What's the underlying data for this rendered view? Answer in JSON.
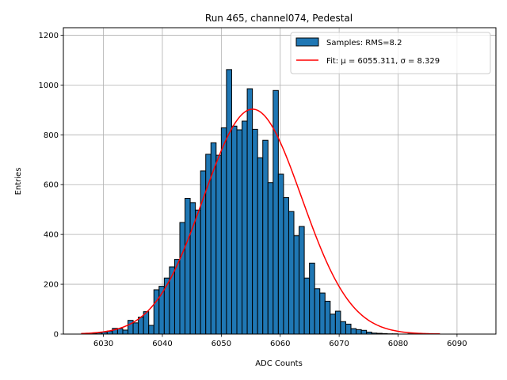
{
  "chart_data": {
    "type": "bar",
    "title": "Run 465, channel074, Pedestal",
    "xlabel": "ADC Counts",
    "ylabel": "Entries",
    "xlim": [
      6023.2,
      6096.6
    ],
    "ylim": [
      0,
      1230
    ],
    "xticks": [
      6030,
      6040,
      6050,
      6060,
      6070,
      6080,
      6090
    ],
    "yticks": [
      0,
      200,
      400,
      600,
      800,
      1000,
      1200
    ],
    "grid": true,
    "legend_position": "top-right",
    "bin_width": 0.88,
    "series": [
      {
        "name": "Samples: RMS=8.2",
        "kind": "histogram",
        "color": "#1f77b4",
        "edgecolor": "#000000",
        "bin_starts": [
          6028.0,
          6028.88,
          6029.76,
          6030.64,
          6031.52,
          6032.4,
          6033.28,
          6034.16,
          6035.04,
          6035.92,
          6036.8,
          6037.68,
          6038.56,
          6039.44,
          6040.32,
          6041.2,
          6042.08,
          6042.96,
          6043.84,
          6044.72,
          6045.6,
          6046.48,
          6047.36,
          6048.24,
          6049.12,
          6050.0,
          6050.88,
          6051.76,
          6052.64,
          6053.52,
          6054.4,
          6055.28,
          6056.16,
          6057.04,
          6057.92,
          6058.8,
          6059.68,
          6060.56,
          6061.44,
          6062.32,
          6063.2,
          6064.08,
          6064.96,
          6065.84,
          6066.72,
          6067.6,
          6068.48,
          6069.36,
          6070.24,
          6071.12,
          6072.0,
          6072.88,
          6073.76,
          6074.64,
          6075.52,
          6076.4,
          6077.28,
          6078.16,
          6079.04,
          6079.92,
          6080.8,
          6081.68
        ],
        "values": [
          3,
          5,
          8,
          12,
          23,
          22,
          16,
          55,
          45,
          68,
          90,
          35,
          178,
          192,
          225,
          270,
          300,
          448,
          545,
          528,
          498,
          655,
          722,
          768,
          718,
          828,
          1062,
          835,
          820,
          855,
          985,
          822,
          708,
          778,
          608,
          978,
          642,
          548,
          492,
          395,
          432,
          225,
          285,
          182,
          165,
          132,
          80,
          92,
          50,
          40,
          22,
          18,
          15,
          8,
          4,
          3,
          2,
          1,
          1,
          0,
          0,
          1
        ]
      },
      {
        "name": "Fit: μ = 6055.311, σ = 8.329",
        "kind": "gaussian",
        "color": "#ff0000",
        "mu": 6055.311,
        "sigma": 8.329,
        "amplitude": 903,
        "x_range": [
          6026.2,
          6087.1
        ]
      }
    ]
  }
}
